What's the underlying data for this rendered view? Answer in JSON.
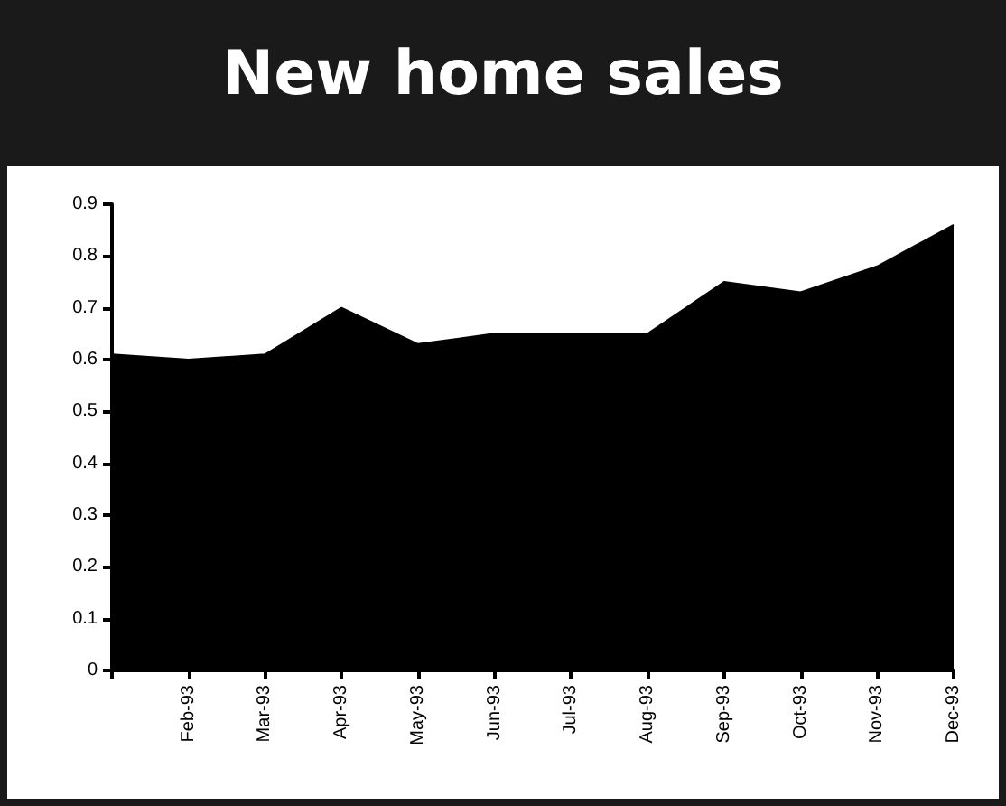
{
  "chart_data": {
    "type": "area",
    "title": "New home sales",
    "categories": [
      null,
      "Feb-93",
      "Mar-93",
      "Apr-93",
      "May-93",
      "Jun-93",
      "Jul-93",
      "Aug-93",
      "Sep-93",
      "Oct-93",
      "Nov-93",
      "Dec-93"
    ],
    "values": [
      0.61,
      0.6,
      0.61,
      0.7,
      0.63,
      0.65,
      0.65,
      0.65,
      0.75,
      0.73,
      0.78,
      0.86
    ],
    "color": "#000000",
    "ylim": [
      0,
      0.9
    ],
    "yticks": [
      0,
      0.1,
      0.2,
      0.3,
      0.4,
      0.5,
      0.6,
      0.7,
      0.8,
      0.9
    ]
  }
}
